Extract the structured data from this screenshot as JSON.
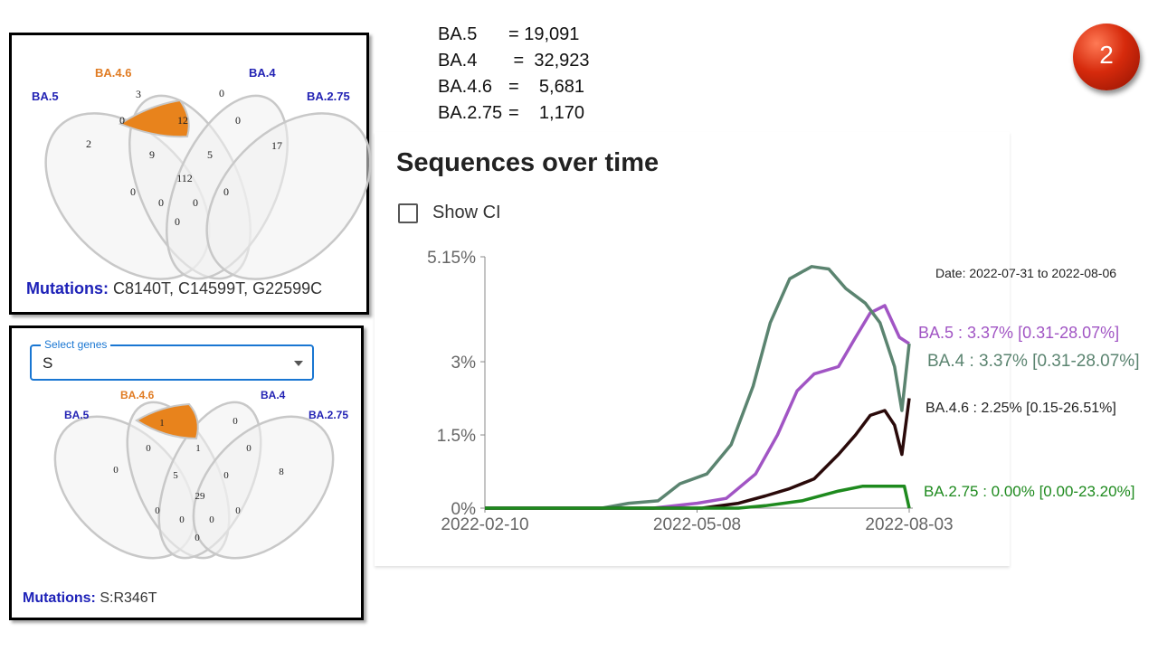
{
  "badge_number": "2",
  "counts": [
    {
      "name": "BA.5",
      "value": "= 19,091"
    },
    {
      "name": "BA.4",
      "value": " =  32,923"
    },
    {
      "name": "BA.4.6",
      "value": "=    5,681"
    },
    {
      "name": "BA.2.75",
      "value": "=    1,170"
    }
  ],
  "venn_top": {
    "labels": {
      "ba5": "BA.5",
      "ba46": "BA.4.6",
      "ba4": "BA.4",
      "ba275": "BA.2.75"
    },
    "region_counts": {
      "only_ba5": "2",
      "only_ba46": "3",
      "only_ba4": "0",
      "only_ba275": "17",
      "ba5_ba46": "0",
      "ba46_ba4": "12",
      "ba4_ba275": "0",
      "ba5_ba46_ba4": "9",
      "ba46_ba4_ba275": "5",
      "all_four": "112",
      "lower_left": "0",
      "lower_mid_left": "0",
      "lower_mid_right": "0",
      "lower_right": "0",
      "bottom": "0"
    },
    "mutations_label": "Mutations:",
    "mutations_value": " C8140T, C14599T, G22599C"
  },
  "venn_bottom": {
    "select_label": "Select genes",
    "select_value": "S",
    "labels": {
      "ba5": "BA.5",
      "ba46": "BA.4.6",
      "ba4": "BA.4",
      "ba275": "BA.2.75"
    },
    "region_counts": {
      "only_ba5": "0",
      "only_ba46": "1",
      "only_ba4": "0",
      "only_ba275": "8",
      "ba5_ba46": "0",
      "ba46_ba4": "1",
      "ba4_ba275": "0",
      "ba5_ba46_ba4": "5",
      "ba46_ba4_ba275": "0",
      "all_four": "29",
      "lower_left": "0",
      "lower_mid_left": "0",
      "lower_mid_right": "0",
      "lower_right": "0",
      "bottom": "0"
    },
    "mutations_label": "Mutations:",
    "mutations_value": " S:R346T"
  },
  "colors": {
    "highlight": "#e8831c",
    "label_blue": "#2323b4",
    "label_orange": "#e07b22",
    "venn_fill": "#f0f0f0",
    "venn_stroke": "#c8c8c8"
  },
  "chart_title": "Sequences over time",
  "show_ci_label": "Show CI",
  "chart_data": {
    "type": "line",
    "title": "Sequences over time",
    "date_range_label": "Date: 2022-07-31 to 2022-08-06",
    "x_ticks": [
      "2022-02-10",
      "2022-05-08",
      "2022-08-03"
    ],
    "y_ticks": [
      "5.15%",
      "3%",
      "1.5%",
      "0%"
    ],
    "ylim": [
      0,
      5.15
    ],
    "xlim": [
      "2022-02-10",
      "2022-08-03"
    ],
    "series": [
      {
        "name": "BA.5",
        "label": "BA.5 : 3.37% [0.31-28.07%]",
        "color": "#a155c4",
        "points": [
          [
            "2022-02-10",
            0
          ],
          [
            "2022-04-20",
            0
          ],
          [
            "2022-05-08",
            0.1
          ],
          [
            "2022-05-20",
            0.2
          ],
          [
            "2022-06-01",
            0.7
          ],
          [
            "2022-06-10",
            1.5
          ],
          [
            "2022-06-18",
            2.4
          ],
          [
            "2022-06-25",
            2.75
          ],
          [
            "2022-07-05",
            2.9
          ],
          [
            "2022-07-12",
            3.5
          ],
          [
            "2022-07-18",
            4.0
          ],
          [
            "2022-07-24",
            4.15
          ],
          [
            "2022-07-30",
            3.5
          ],
          [
            "2022-08-03",
            3.37
          ]
        ]
      },
      {
        "name": "BA.4",
        "label": "BA.4 : 3.37% [0.31-28.07%]",
        "color": "#5b8470",
        "points": [
          [
            "2022-02-10",
            0
          ],
          [
            "2022-03-30",
            0
          ],
          [
            "2022-04-10",
            0.1
          ],
          [
            "2022-04-22",
            0.15
          ],
          [
            "2022-05-01",
            0.5
          ],
          [
            "2022-05-12",
            0.7
          ],
          [
            "2022-05-22",
            1.3
          ],
          [
            "2022-05-31",
            2.5
          ],
          [
            "2022-06-07",
            3.8
          ],
          [
            "2022-06-15",
            4.7
          ],
          [
            "2022-06-24",
            4.95
          ],
          [
            "2022-07-01",
            4.9
          ],
          [
            "2022-07-08",
            4.5
          ],
          [
            "2022-07-16",
            4.2
          ],
          [
            "2022-07-22",
            3.8
          ],
          [
            "2022-07-28",
            2.9
          ],
          [
            "2022-07-31",
            2.0
          ],
          [
            "2022-08-03",
            3.37
          ]
        ]
      },
      {
        "name": "BA.4.6",
        "label": "BA.4.6 : 2.25% [0.15-26.51%]",
        "color": "#2a0a0a",
        "points": [
          [
            "2022-02-10",
            0
          ],
          [
            "2022-05-10",
            0
          ],
          [
            "2022-05-25",
            0.1
          ],
          [
            "2022-06-05",
            0.25
          ],
          [
            "2022-06-15",
            0.4
          ],
          [
            "2022-06-25",
            0.6
          ],
          [
            "2022-07-05",
            1.1
          ],
          [
            "2022-07-12",
            1.5
          ],
          [
            "2022-07-18",
            1.9
          ],
          [
            "2022-07-24",
            2.0
          ],
          [
            "2022-07-28",
            1.7
          ],
          [
            "2022-07-31",
            1.1
          ],
          [
            "2022-08-03",
            2.25
          ]
        ]
      },
      {
        "name": "BA.2.75",
        "label": "BA.2.75 : 0.00% [0.00-23.20%]",
        "color": "#1e8a1e",
        "points": [
          [
            "2022-02-10",
            0
          ],
          [
            "2022-05-25",
            0
          ],
          [
            "2022-06-05",
            0.05
          ],
          [
            "2022-06-20",
            0.15
          ],
          [
            "2022-07-05",
            0.35
          ],
          [
            "2022-07-15",
            0.45
          ],
          [
            "2022-07-25",
            0.45
          ],
          [
            "2022-08-01",
            0.45
          ],
          [
            "2022-08-03",
            0
          ]
        ]
      }
    ]
  }
}
